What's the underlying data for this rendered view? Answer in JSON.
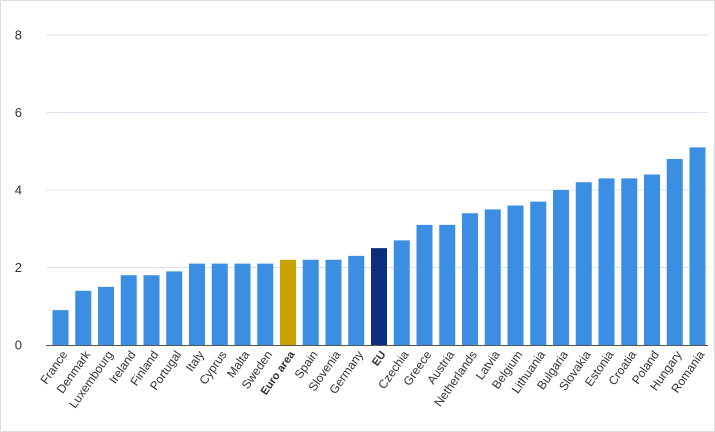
{
  "chart_data": {
    "type": "bar",
    "title": "",
    "xlabel": "",
    "ylabel": "",
    "ylim": [
      0,
      8
    ],
    "yticks": [
      0,
      2,
      4,
      6,
      8
    ],
    "grid": true,
    "legend": "none",
    "colors": {
      "default": "#3b8ee2",
      "euro_area": "#c9a204",
      "eu": "#0d2f7a",
      "grid": "#dde3ee",
      "axis": "#555555"
    },
    "categories": [
      "France",
      "Denmark",
      "Luxembourg",
      "Ireland",
      "Finland",
      "Portugal",
      "Italy",
      "Cyprus",
      "Malta",
      "Sweden",
      "Euro area",
      "Spain",
      "Slovenia",
      "Germany",
      "EU",
      "Czechia",
      "Greece",
      "Austria",
      "Netherlands",
      "Latvia",
      "Belgium",
      "Lithuania",
      "Bulgaria",
      "Slovakia",
      "Estonia",
      "Croatia",
      "Poland",
      "Hungary",
      "Romania"
    ],
    "values": [
      0.9,
      1.4,
      1.5,
      1.8,
      1.8,
      1.9,
      2.1,
      2.1,
      2.1,
      2.1,
      2.2,
      2.2,
      2.2,
      2.3,
      2.5,
      2.7,
      3.1,
      3.1,
      3.4,
      3.5,
      3.6,
      3.7,
      4.0,
      4.2,
      4.3,
      4.3,
      4.4,
      4.8,
      5.1
    ],
    "highlight": {
      "Euro area": "euro_area",
      "EU": "eu"
    },
    "bold_categories": [
      "Euro area",
      "EU"
    ]
  }
}
